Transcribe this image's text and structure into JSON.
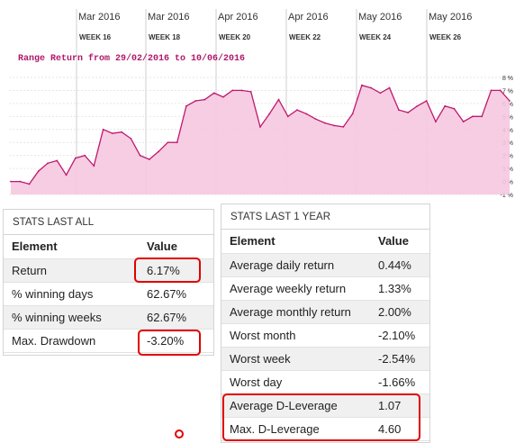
{
  "chart": {
    "range_label": "Range Return from 29/02/2016 to 10/06/2016",
    "month_labels": [
      "Mar 2016",
      "Mar 2016",
      "Apr 2016",
      "Apr 2016",
      "May 2016",
      "May 2016"
    ],
    "week_labels": [
      "WEEK 16",
      "WEEK 18",
      "WEEK 20",
      "WEEK 22",
      "WEEK 24",
      "WEEK 26"
    ],
    "y_tick_labels": [
      "8 %",
      "7 %",
      "6 %",
      "5 %",
      "4 %",
      "3 %",
      "2 %",
      "1 %",
      "0 %",
      "-1 %"
    ],
    "line_color": "#c0186e",
    "fill_color": "#f5c8e0"
  },
  "chart_data": {
    "type": "area",
    "title": "Range Return from 29/02/2016 to 10/06/2016",
    "xlabel": "",
    "ylabel": "",
    "ylim": [
      -1,
      8
    ],
    "grid": true,
    "series": [
      {
        "values": [
          0,
          0,
          -0.2,
          0.8,
          1.4,
          1.6,
          0.5,
          1.8,
          2.0,
          1.2,
          4.0,
          3.7,
          3.8,
          3.3,
          2.0,
          1.7,
          2.3,
          3.0,
          3.0,
          5.8,
          6.2,
          6.3,
          6.8,
          6.5,
          7.0,
          7.0,
          6.9,
          4.2,
          5.2,
          6.3,
          5.0,
          5.5,
          5.2,
          4.8,
          4.5,
          4.3,
          4.2,
          5.2,
          7.4,
          7.2,
          6.8,
          7.2,
          5.5,
          5.3,
          5.8,
          6.2,
          4.6,
          5.8,
          5.6,
          4.6,
          5.0,
          5.0,
          7.0,
          7.0,
          6.2
        ]
      }
    ]
  },
  "stats_all": {
    "title": "STATS LAST ALL",
    "col_element": "Element",
    "col_value": "Value",
    "rows": [
      {
        "element": "Return",
        "value": "6.17%"
      },
      {
        "element": "% winning days",
        "value": "62.67%"
      },
      {
        "element": "% winning weeks",
        "value": "62.67%"
      },
      {
        "element": "Max. Drawdown",
        "value": "-3.20%"
      }
    ]
  },
  "stats_year": {
    "title": "STATS LAST 1 YEAR",
    "col_element": "Element",
    "col_value": "Value",
    "rows": [
      {
        "element": "Average daily return",
        "value": "0.44%"
      },
      {
        "element": "Average weekly return",
        "value": "1.33%"
      },
      {
        "element": "Average monthly return",
        "value": "2.00%"
      },
      {
        "element": "Worst month",
        "value": "-2.10%"
      },
      {
        "element": "Worst week",
        "value": "-2.54%"
      },
      {
        "element": "Worst day",
        "value": "-1.66%"
      },
      {
        "element": "Average D-Leverage",
        "value": "1.07"
      },
      {
        "element": "Max. D-Leverage",
        "value": "4.60"
      }
    ]
  },
  "highlight_color": "#e00000"
}
